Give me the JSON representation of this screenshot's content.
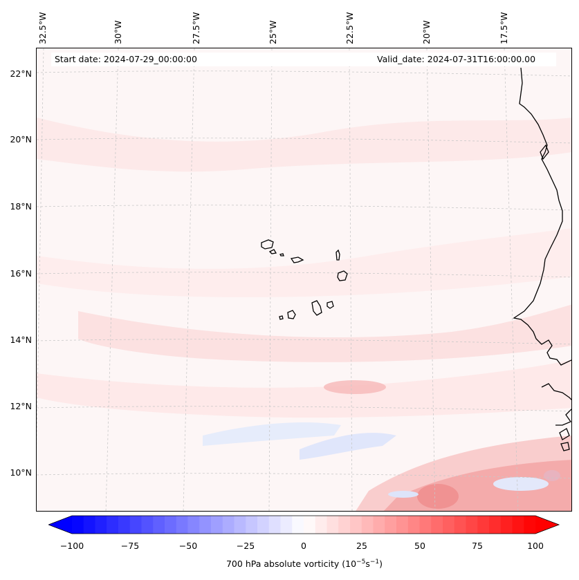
{
  "header": {
    "start_date": "Start date: 2024-07-29_00:00:00",
    "valid_date": "Valid_date: 2024-07-31T16:00:00.00"
  },
  "longitude_labels": [
    "32.5°W",
    "30°W",
    "27.5°W",
    "25°W",
    "22.5°W",
    "20°W",
    "17.5°W"
  ],
  "latitude_labels": [
    "22°N",
    "20°N",
    "18°N",
    "16°N",
    "14°N",
    "12°N",
    "10°N"
  ],
  "colorbar": {
    "title": "700 hPa absolute vorticity (10",
    "title_exp1": "−5",
    "title_mid": "s",
    "title_exp2": "−1",
    "title_end": ")",
    "ticks": [
      "−100",
      "−75",
      "−50",
      "−25",
      "0",
      "25",
      "50",
      "75",
      "100"
    ],
    "min": -100,
    "max": 100,
    "low_color": "#0000ff",
    "mid_color": "#ffffff",
    "high_color": "#ff0000"
  },
  "colors": {
    "coastline": "#000000",
    "gridline": "#bbbbbb",
    "weak_positive": "#fde0e0",
    "weak_negative": "#e8eefc"
  }
}
